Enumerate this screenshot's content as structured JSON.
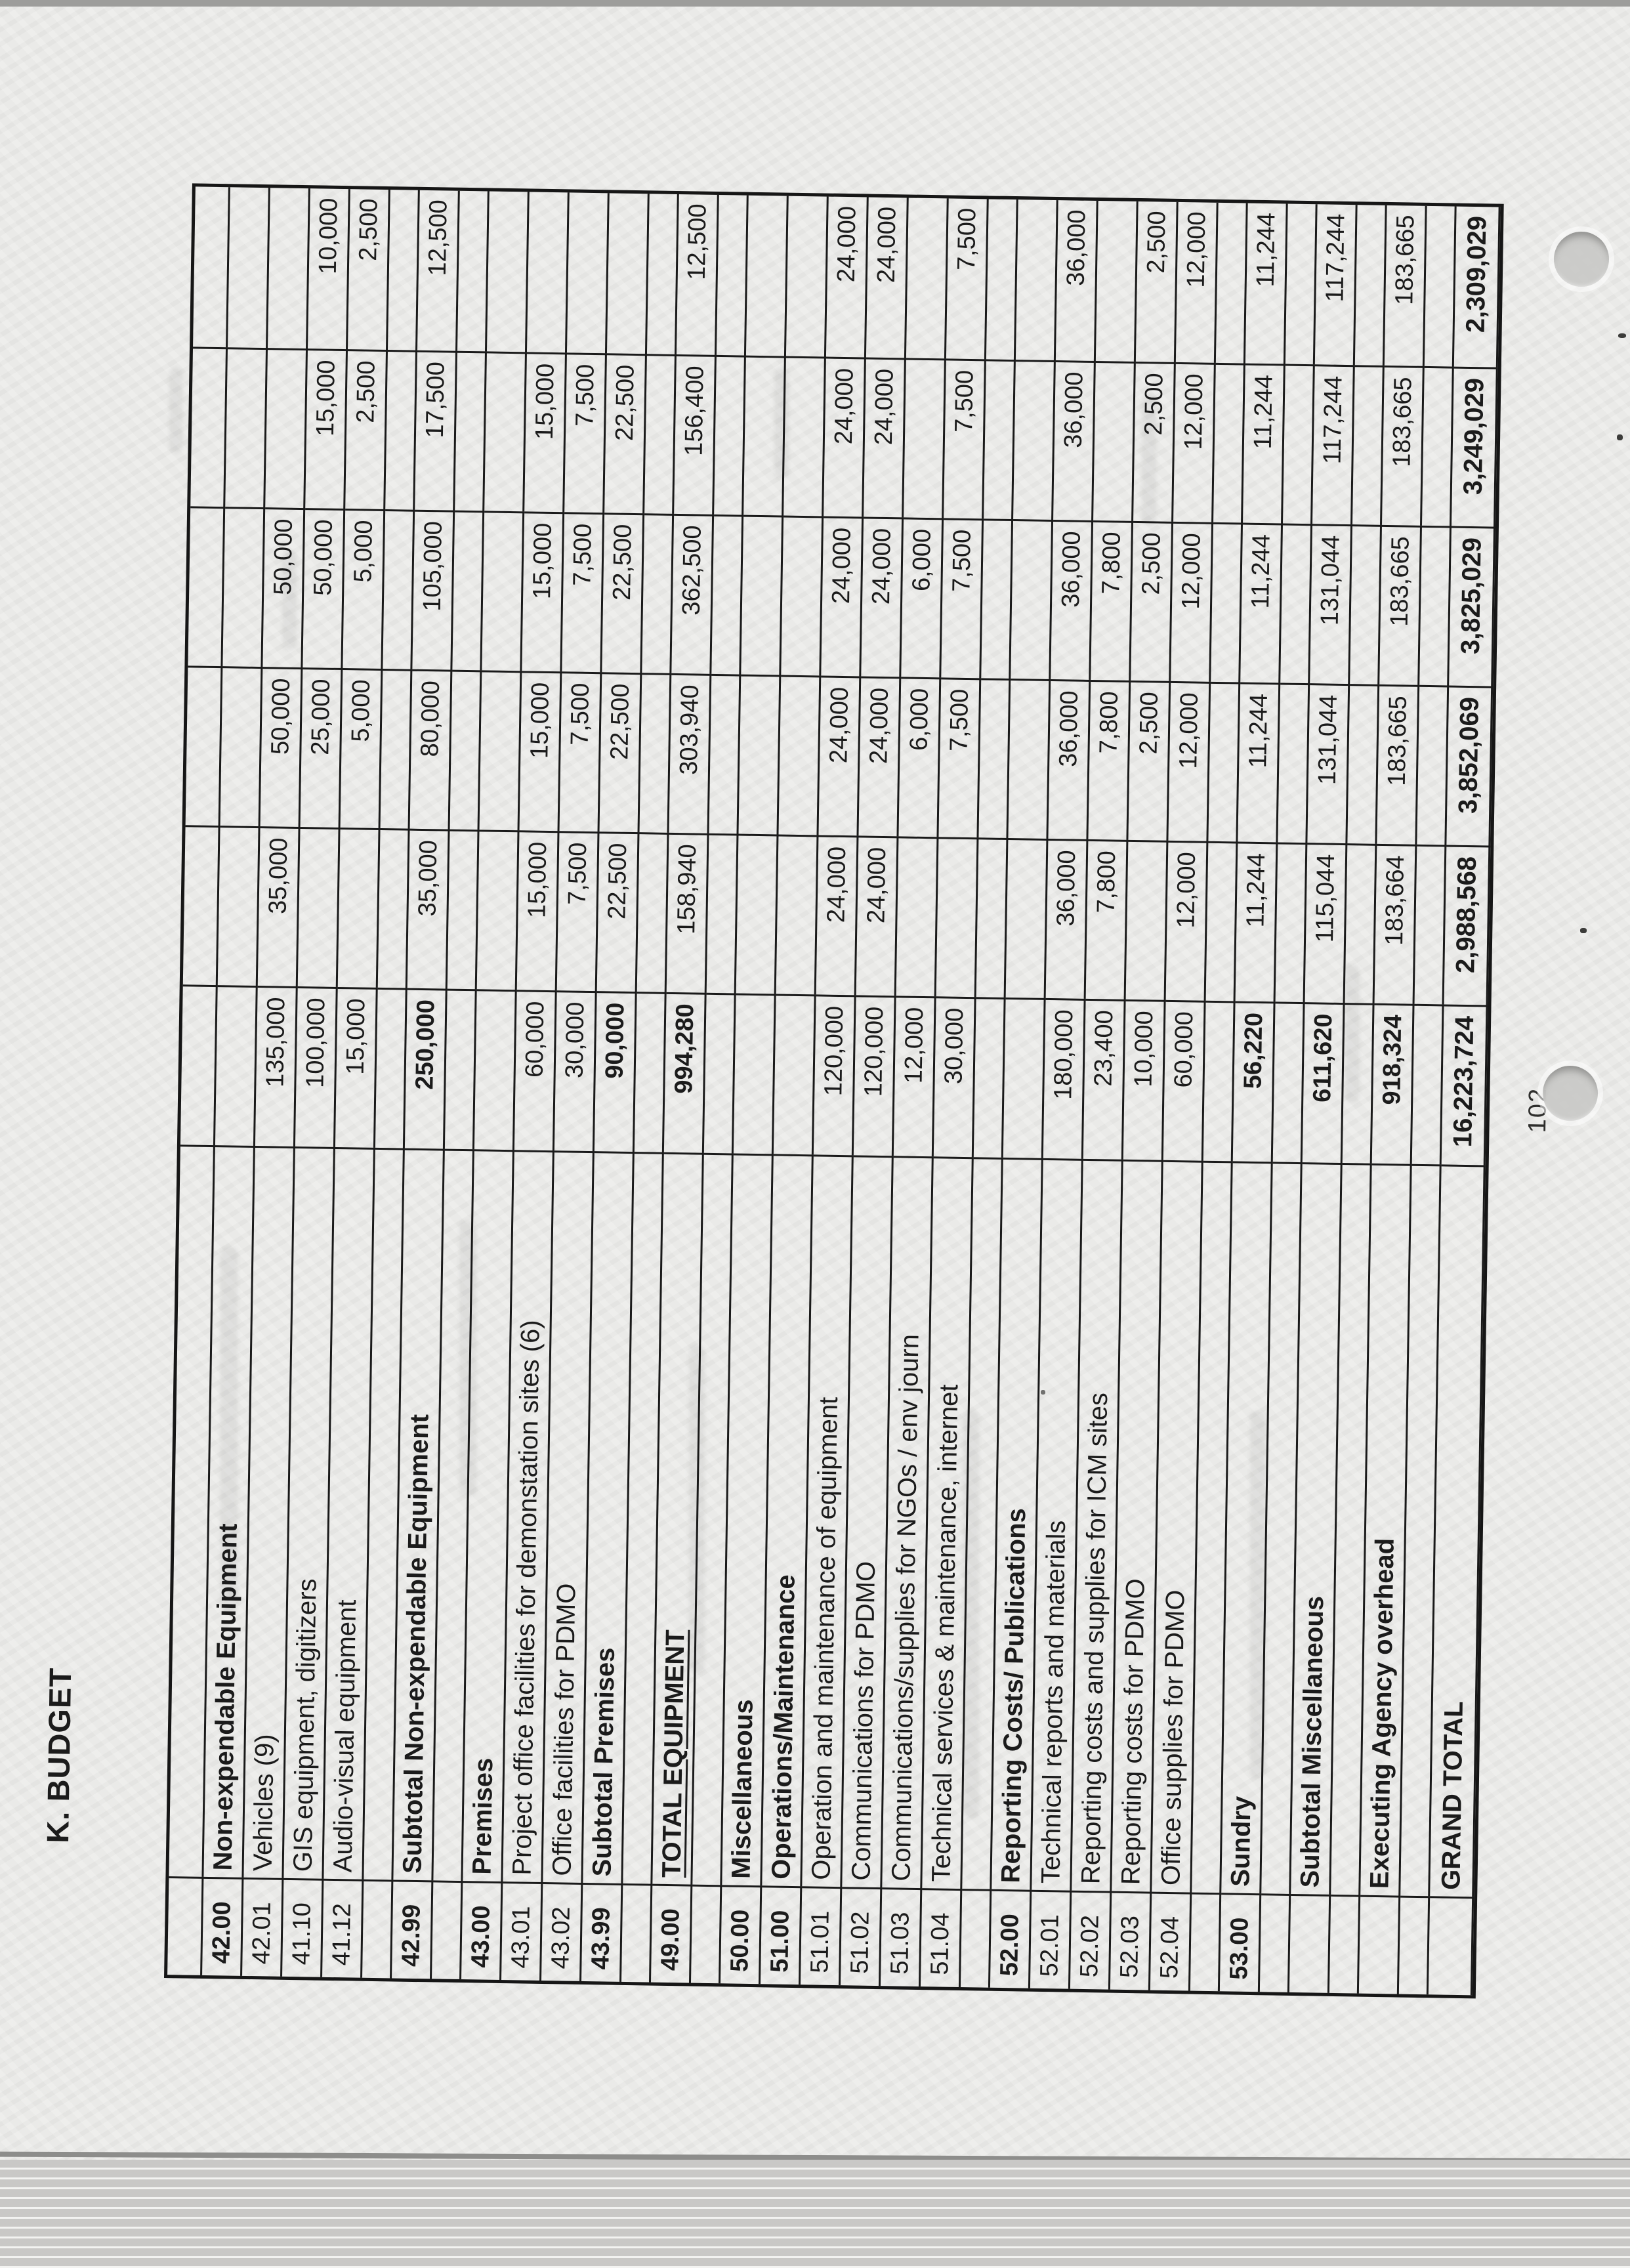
{
  "page": {
    "title": "K. BUDGET",
    "page_number": "102"
  },
  "table": {
    "value_columns_note": "Total followed by five yearly columns (no visible headers in scan)",
    "rows": [
      {
        "style": "lead",
        "code": "",
        "description": "",
        "values": [
          "",
          "",
          "",
          "",
          "",
          ""
        ]
      },
      {
        "style": "section",
        "code": "42.00",
        "description": "Non-expendable Equipment",
        "values": [
          "",
          "",
          "",
          "",
          "",
          ""
        ]
      },
      {
        "style": "item",
        "code": "42.01",
        "description": "Vehicles (9)",
        "values": [
          "135,000",
          "35,000",
          "50,000",
          "50,000",
          "",
          ""
        ]
      },
      {
        "style": "item",
        "code": "41.10",
        "description": "GIS equipment, digitizers",
        "values": [
          "100,000",
          "",
          "25,000",
          "50,000",
          "15,000",
          "10,000"
        ]
      },
      {
        "style": "item",
        "code": "41.12",
        "description": "Audio-visual equipment",
        "values": [
          "15,000",
          "",
          "5,000",
          "5,000",
          "2,500",
          "2,500"
        ]
      },
      {
        "style": "spacer",
        "code": "",
        "description": "",
        "values": [
          "",
          "",
          "",
          "",
          "",
          ""
        ]
      },
      {
        "style": "subtotal",
        "code": "42.99",
        "description": "Subtotal Non-expendable Equipment",
        "values": [
          "250,000",
          "35,000",
          "80,000",
          "105,000",
          "17,500",
          "12,500"
        ]
      },
      {
        "style": "spacer",
        "code": "",
        "description": "",
        "values": [
          "",
          "",
          "",
          "",
          "",
          ""
        ]
      },
      {
        "style": "section",
        "code": "43.00",
        "description": "Premises",
        "values": [
          "",
          "",
          "",
          "",
          "",
          ""
        ]
      },
      {
        "style": "item",
        "code": "43.01",
        "description": "Project office facilities for demonstation sites (6)",
        "values": [
          "60,000",
          "15,000",
          "15,000",
          "15,000",
          "15,000",
          ""
        ]
      },
      {
        "style": "item",
        "code": "43.02",
        "description": "Office facilities for PDMO",
        "values": [
          "30,000",
          "7,500",
          "7,500",
          "7,500",
          "7,500",
          ""
        ]
      },
      {
        "style": "subtotal",
        "code": "43.99",
        "description": "Subtotal Premises",
        "values": [
          "90,000",
          "22,500",
          "22,500",
          "22,500",
          "22,500",
          ""
        ]
      },
      {
        "style": "spacer",
        "code": "",
        "description": "",
        "values": [
          "",
          "",
          "",
          "",
          "",
          ""
        ]
      },
      {
        "style": "total-equipment",
        "code": "49.00",
        "description": "TOTAL EQUIPMENT",
        "values": [
          "994,280",
          "158,940",
          "303,940",
          "362,500",
          "156,400",
          "12,500"
        ]
      },
      {
        "style": "spacer",
        "code": "",
        "description": "",
        "values": [
          "",
          "",
          "",
          "",
          "",
          ""
        ]
      },
      {
        "style": "section",
        "code": "50.00",
        "description": "Miscellaneous",
        "values": [
          "",
          "",
          "",
          "",
          "",
          ""
        ]
      },
      {
        "style": "section",
        "code": "51.00",
        "description": "Operations/Maintenance",
        "values": [
          "",
          "",
          "",
          "",
          "",
          ""
        ]
      },
      {
        "style": "item",
        "code": "51.01",
        "description": "Operation and maintenance of equipment",
        "values": [
          "120,000",
          "24,000",
          "24,000",
          "24,000",
          "24,000",
          "24,000"
        ]
      },
      {
        "style": "item",
        "code": "51.02",
        "description": "Communications for PDMO",
        "values": [
          "120,000",
          "24,000",
          "24,000",
          "24,000",
          "24,000",
          "24,000"
        ]
      },
      {
        "style": "item",
        "code": "51.03",
        "description": "Communications/supplies for NGOs / env journ",
        "values": [
          "12,000",
          "",
          "6,000",
          "6,000",
          "",
          ""
        ]
      },
      {
        "style": "item",
        "code": "51.04",
        "description": "Technical services & maintenance, internet",
        "values": [
          "30,000",
          "",
          "7,500",
          "7,500",
          "7,500",
          "7,500"
        ]
      },
      {
        "style": "spacer",
        "code": "",
        "description": "",
        "values": [
          "",
          "",
          "",
          "",
          "",
          ""
        ]
      },
      {
        "style": "section",
        "code": "52.00",
        "description": "Reporting Costs/ Publications",
        "values": [
          "",
          "",
          "",
          "",
          "",
          ""
        ]
      },
      {
        "style": "item",
        "code": "52.01",
        "description": "Technical reports and materials",
        "values": [
          "180,000",
          "36,000",
          "36,000",
          "36,000",
          "36,000",
          "36,000"
        ]
      },
      {
        "style": "item",
        "code": "52.02",
        "description": "Reporting costs and supplies for ICM sites",
        "values": [
          "23,400",
          "7,800",
          "7,800",
          "7,800",
          "",
          ""
        ]
      },
      {
        "style": "item",
        "code": "52.03",
        "description": "Reporting costs for PDMO",
        "values": [
          "10,000",
          "",
          "2,500",
          "2,500",
          "2,500",
          "2,500"
        ]
      },
      {
        "style": "item",
        "code": "52.04",
        "description": "Office supplies for PDMO",
        "values": [
          "60,000",
          "12,000",
          "12,000",
          "12,000",
          "12,000",
          "12,000"
        ]
      },
      {
        "style": "spacer",
        "code": "",
        "description": "",
        "values": [
          "",
          "",
          "",
          "",
          "",
          ""
        ]
      },
      {
        "style": "subtotal",
        "code": "53.00",
        "description": "Sundry",
        "values": [
          "56,220",
          "11,244",
          "11,244",
          "11,244",
          "11,244",
          "11,244"
        ]
      },
      {
        "style": "spacer",
        "code": "",
        "description": "",
        "values": [
          "",
          "",
          "",
          "",
          "",
          ""
        ]
      },
      {
        "style": "subtotal",
        "code": "",
        "description": "Subtotal Miscellaneous",
        "values": [
          "611,620",
          "115,044",
          "131,044",
          "131,044",
          "117,244",
          "117,244"
        ]
      },
      {
        "style": "spacer",
        "code": "",
        "description": "",
        "values": [
          "",
          "",
          "",
          "",
          "",
          ""
        ]
      },
      {
        "style": "subtotal",
        "code": "",
        "description": "Executing Agency overhead",
        "values": [
          "918,324",
          "183,664",
          "183,665",
          "183,665",
          "183,665",
          "183,665"
        ]
      },
      {
        "style": "spacer",
        "code": "",
        "description": "",
        "values": [
          "",
          "",
          "",
          "",
          "",
          ""
        ]
      },
      {
        "style": "grand",
        "code": "",
        "description": "GRAND TOTAL",
        "values": [
          "16,223,724",
          "2,988,568",
          "3,852,069",
          "3,825,029",
          "3,249,029",
          "2,309,029"
        ]
      }
    ]
  }
}
